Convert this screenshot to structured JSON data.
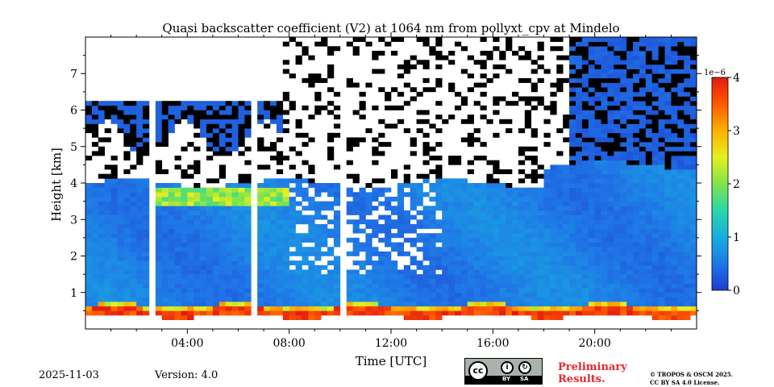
{
  "chart_data": {
    "type": "heatmap",
    "title": "Quasi backscatter coefficient (V2) at 1064 nm from pollyxt_cpv at Mindelo",
    "xlabel": "Time [UTC]",
    "ylabel": "Height [km]",
    "x_range_hours": [
      0,
      24
    ],
    "y_range_km": [
      0,
      8
    ],
    "x_ticks": [
      {
        "value": 4,
        "label": "04:00"
      },
      {
        "value": 8,
        "label": "08:00"
      },
      {
        "value": 12,
        "label": "12:00"
      },
      {
        "value": 16,
        "label": "16:00"
      },
      {
        "value": 20,
        "label": "20:00"
      }
    ],
    "y_ticks": [
      {
        "value": 1,
        "label": "1"
      },
      {
        "value": 2,
        "label": "2"
      },
      {
        "value": 3,
        "label": "3"
      },
      {
        "value": 4,
        "label": "4"
      },
      {
        "value": 5,
        "label": "5"
      },
      {
        "value": 6,
        "label": "6"
      },
      {
        "value": 7,
        "label": "7"
      }
    ],
    "colorbar": {
      "range": [
        0,
        4
      ],
      "scale_label": "1e−6",
      "ticks": [
        {
          "value": 0,
          "label": "0"
        },
        {
          "value": 1,
          "label": "1"
        },
        {
          "value": 2,
          "label": "2"
        },
        {
          "value": 3,
          "label": "3"
        },
        {
          "value": 4,
          "label": "4"
        }
      ],
      "colors": [
        "#1e3cd2",
        "#1f78e6",
        "#17aee0",
        "#2bd6a8",
        "#7ee44a",
        "#e8ef20",
        "#ffb000",
        "#ff5a00",
        "#e11a10"
      ]
    },
    "layers": {
      "surface_top_km": 0.55,
      "aerosol_top_km": 4.0,
      "elevated_layer_km": [
        3.4,
        3.9
      ],
      "cloud_base_km": [
        5.2,
        6.3
      ],
      "data_gaps_hours": [
        2.7,
        6.55,
        10.1
      ]
    }
  },
  "footer": {
    "date": "2025-11-03",
    "version": "Version: 4.0",
    "cc_symbol": "cc",
    "cc_by": "BY",
    "cc_sa": "SA",
    "preliminary_line1": "Preliminary",
    "preliminary_line2": "Results.",
    "copyright_line1": "© TROPOS & OSCM 2025.",
    "copyright_line2": "CC BY SA 4.0 License."
  }
}
